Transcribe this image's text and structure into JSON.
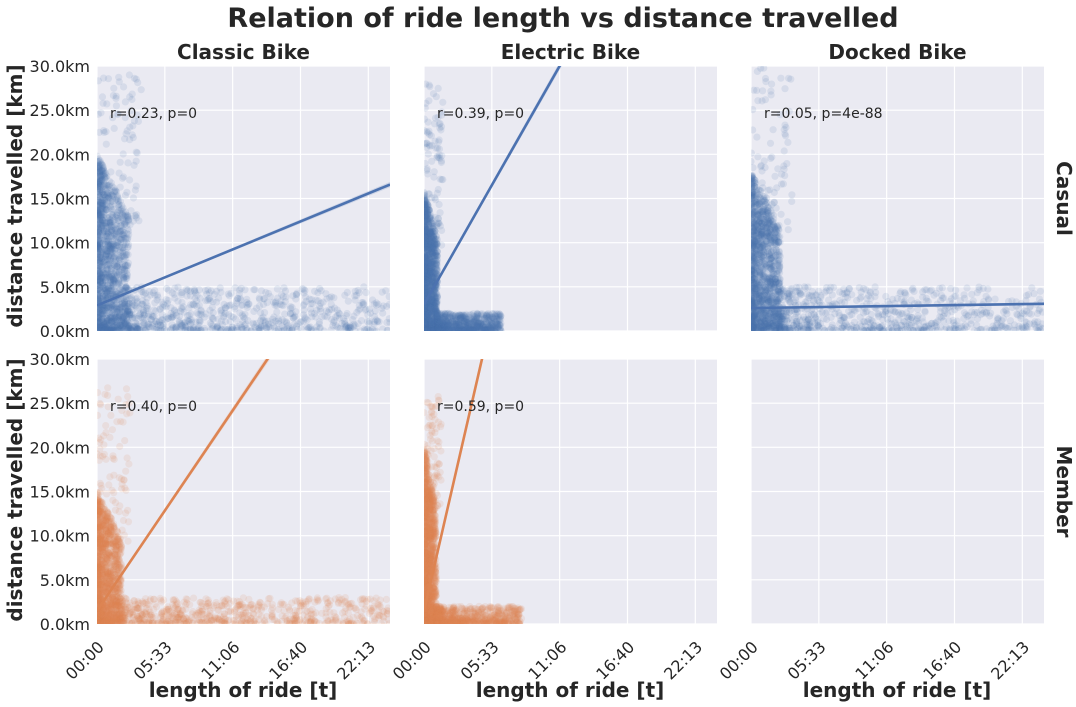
{
  "chart_data": {
    "type": "scatter",
    "title": "Relation of ride length vs distance travelled",
    "xlabel": "length of ride [t]",
    "ylabel": "distance travelled [km]",
    "col_titles": [
      "Classic Bike",
      "Electric Bike",
      "Docked Bike"
    ],
    "row_titles": [
      "Casual",
      "Member"
    ],
    "x_ticks": [
      "00:00",
      "05:33",
      "11:06",
      "16:40",
      "22:13"
    ],
    "y_ticks": [
      "0.0km",
      "5.0km",
      "10.0km",
      "15.0km",
      "20.0km",
      "25.0km",
      "30.0km"
    ],
    "xlim_hours": [
      0,
      24
    ],
    "ylim_km": [
      0,
      30
    ],
    "grid": true,
    "colors": {
      "casual": "#4c72b0",
      "member": "#dd8452",
      "panel_bg": "#eaeaf2",
      "grid": "#ffffff"
    },
    "panels": [
      {
        "row": "Casual",
        "col": "Classic Bike",
        "annotation": "r=0.23, p=0",
        "has_data": true,
        "regression": {
          "intercept_km": 2.9,
          "slope_km_per_hour": 0.57
        },
        "scatter": {
          "core_max_hours": 2.6,
          "core_max_km": 20,
          "peak_km": 30,
          "tail_max_hours": 24,
          "tail_km": 5
        }
      },
      {
        "row": "Casual",
        "col": "Electric Bike",
        "annotation": "r=0.39, p=0",
        "has_data": true,
        "regression": {
          "intercept_km": 3.0,
          "slope_km_per_hour": 2.43
        },
        "scatter": {
          "core_max_hours": 1.1,
          "core_max_km": 16,
          "peak_km": 28,
          "tail_max_hours": 6.3,
          "tail_km": 2
        }
      },
      {
        "row": "Casual",
        "col": "Docked Bike",
        "annotation": "r=0.05, p=4e-88",
        "has_data": true,
        "regression": {
          "intercept_km": 2.6,
          "slope_km_per_hour": 0.02
        },
        "scatter": {
          "core_max_hours": 2.4,
          "core_max_km": 18,
          "peak_km": 30,
          "tail_max_hours": 24,
          "tail_km": 5
        }
      },
      {
        "row": "Member",
        "col": "Classic Bike",
        "annotation": "r=0.40, p=0",
        "has_data": true,
        "regression": {
          "intercept_km": 1.5,
          "slope_km_per_hour": 2.04
        },
        "scatter": {
          "core_max_hours": 2.0,
          "core_max_km": 15,
          "peak_km": 27,
          "tail_max_hours": 24,
          "tail_km": 3
        }
      },
      {
        "row": "Member",
        "col": "Electric Bike",
        "annotation": "r=0.59, p=0",
        "has_data": true,
        "regression": {
          "intercept_km": 1.5,
          "slope_km_per_hour": 6.0
        },
        "scatter": {
          "core_max_hours": 1.0,
          "core_max_km": 20,
          "peak_km": 26,
          "tail_max_hours": 8.0,
          "tail_km": 2
        }
      },
      {
        "row": "Member",
        "col": "Docked Bike",
        "annotation": "",
        "has_data": false
      }
    ]
  }
}
